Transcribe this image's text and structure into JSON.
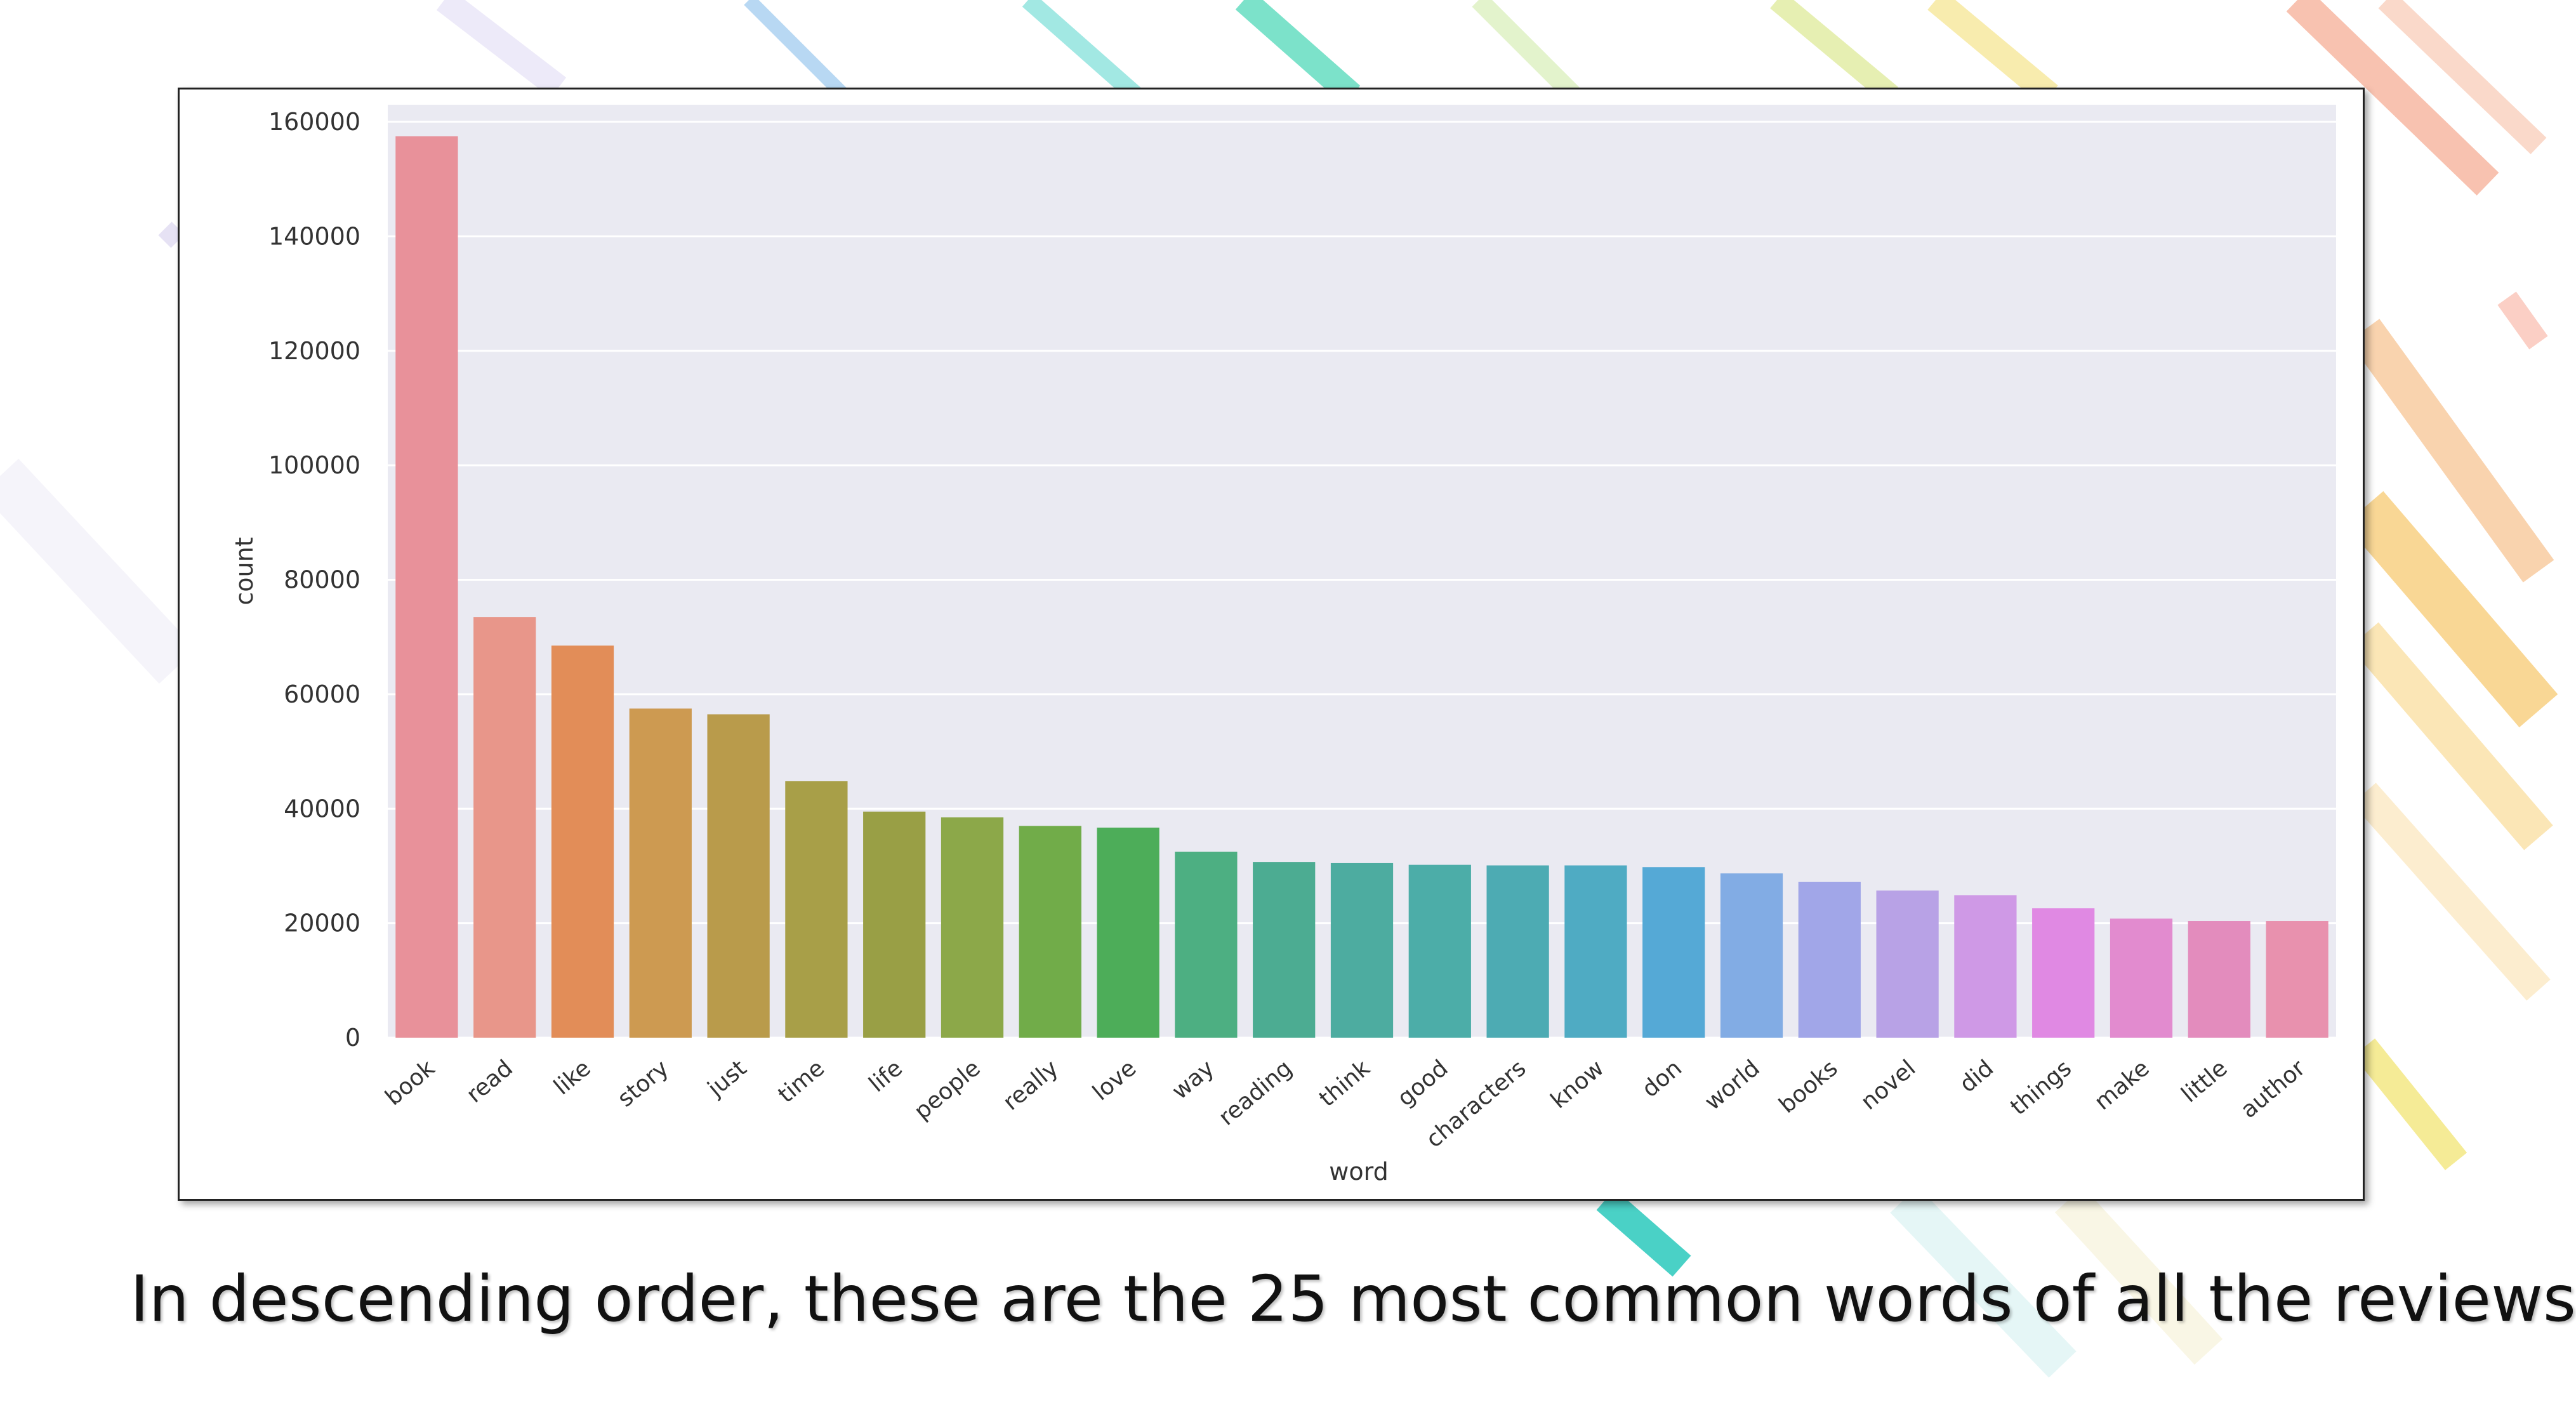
{
  "caption": "In descending order, these are the 25 most common words of all the reviews",
  "chart_data": {
    "type": "bar",
    "title": "",
    "xlabel": "word",
    "ylabel": "count",
    "ylim": [
      0,
      163000
    ],
    "yticks": [
      0,
      20000,
      40000,
      60000,
      80000,
      100000,
      120000,
      140000,
      160000
    ],
    "grid": true,
    "categories": [
      "book",
      "read",
      "like",
      "story",
      "just",
      "time",
      "life",
      "people",
      "really",
      "love",
      "way",
      "reading",
      "think",
      "good",
      "characters",
      "know",
      "don",
      "world",
      "books",
      "novel",
      "did",
      "things",
      "make",
      "little",
      "author"
    ],
    "values": [
      157500,
      73500,
      68500,
      57500,
      56500,
      44800,
      39500,
      38500,
      37000,
      36700,
      32500,
      30700,
      30500,
      30200,
      30100,
      30100,
      29800,
      28700,
      27200,
      25700,
      24900,
      22600,
      20800,
      20400,
      20400
    ],
    "colors": [
      "#e8919a",
      "#e8968a",
      "#e28d58",
      "#cd9a51",
      "#b99b4b",
      "#a89f48",
      "#999f45",
      "#8ca849",
      "#71ac49",
      "#4dad59",
      "#4daf82",
      "#4cac92",
      "#4daca0",
      "#4cada8",
      "#4dabb3",
      "#4fabc3",
      "#55a9d6",
      "#82ace4",
      "#a1a6e8",
      "#b8a2e6",
      "#cf99e6",
      "#e089e3",
      "#e28bcf",
      "#e38cbd",
      "#e891ae"
    ]
  }
}
